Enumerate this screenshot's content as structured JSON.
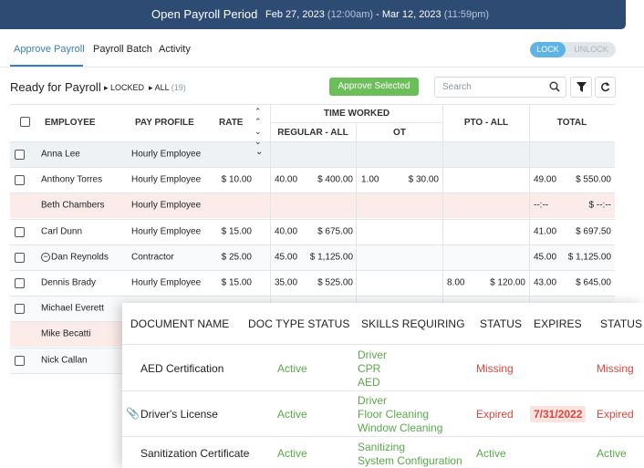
{
  "header": {
    "title": "Open Payroll Period",
    "start_date": "Feb 27, 2023",
    "start_time": "(12:00am)",
    "separator": "-",
    "end_date": "Mar 12, 2023",
    "end_time": "(11:59pm)"
  },
  "tabs": [
    "Approve Payroll",
    "Payroll Batch",
    "Activity"
  ],
  "lock_toggle": [
    "LOCK",
    "UNLOCK"
  ],
  "toolbar": {
    "title": "Ready for Payroll",
    "locked": "LOCKED",
    "all": "ALL",
    "count": "(19)",
    "approve_button": "Approve Selected",
    "search_placeholder": "Search"
  },
  "table": {
    "columns": {
      "employee": "EMPLOYEE",
      "pay_profile": "PAY PROFILE",
      "rate": "RATE",
      "time_worked": "TIME WORKED",
      "regular": "REGULAR - ALL",
      "ot": "OT",
      "pto": "PTO - ALL",
      "total": "TOTAL"
    },
    "rows": [
      {
        "name": "Anna Lee",
        "profile": "Hourly Employee",
        "expandable": true
      },
      {
        "name": "Anthony Torres",
        "profile": "Hourly Employee",
        "rate": "$ 10.00",
        "reg_hours": "40.00",
        "reg_amount": "$ 400.00",
        "ot_hours": "1.00",
        "ot_amount": "$ 30.00",
        "total_hours": "49.00",
        "total_amount": "$ 550.00"
      },
      {
        "name": "Beth Chambers",
        "profile": "Hourly Employee",
        "flagged": true,
        "total_hours": "--:--",
        "total_amount": "$ --:--"
      },
      {
        "name": "Carl Dunn",
        "profile": "Hourly Employee",
        "rate": "$ 15.00",
        "reg_hours": "40.00",
        "reg_amount": "$ 675.00",
        "total_hours": "41.00",
        "total_amount": "$ 697.50"
      },
      {
        "name": "Dan Reynolds",
        "profile": "Contractor",
        "icon": "minus-circle",
        "rate": "$ 25.00",
        "reg_hours": "45.00",
        "reg_amount": "$ 1,125.00",
        "total_hours": "45.00",
        "total_amount": "$ 1,125.00"
      },
      {
        "name": "Dennis Brady",
        "profile": "Hourly Employee",
        "rate": "$ 15.00",
        "reg_hours": "35.00",
        "reg_amount": "$ 525.00",
        "pto_hours": "8.00",
        "pto_amount": "$ 120.00",
        "total_hours": "43.00",
        "total_amount": "$ 645.00"
      },
      {
        "name": "Michael Everett"
      },
      {
        "name": "Mike Becatti",
        "flagged": true
      },
      {
        "name": "Nick Callan"
      }
    ]
  },
  "documents": {
    "columns": [
      "DOCUMENT NAME",
      "DOC TYPE STATUS",
      "SKILLS REQUIRING",
      "STATUS",
      "EXPIRES",
      "STATUS"
    ],
    "rows": [
      {
        "name": "AED Certification",
        "doc_type_status": "Active",
        "skills": [
          "Driver",
          "CPR",
          "AED"
        ],
        "status": "Missing",
        "final_status": "Missing"
      },
      {
        "name": "Driver's License",
        "attachment": true,
        "doc_type_status": "Active",
        "skills": [
          "Driver",
          "Floor Cleaning",
          "Window Cleaning"
        ],
        "status": "Expired",
        "expires": "7/31/2022",
        "expires_highlight": true,
        "final_status": "Expired"
      },
      {
        "name": "Sanitization Certificate",
        "doc_type_status": "Active",
        "skills": [
          "Sanitizing",
          "System Configuration"
        ],
        "status": "Active",
        "final_status": "Active"
      }
    ]
  }
}
